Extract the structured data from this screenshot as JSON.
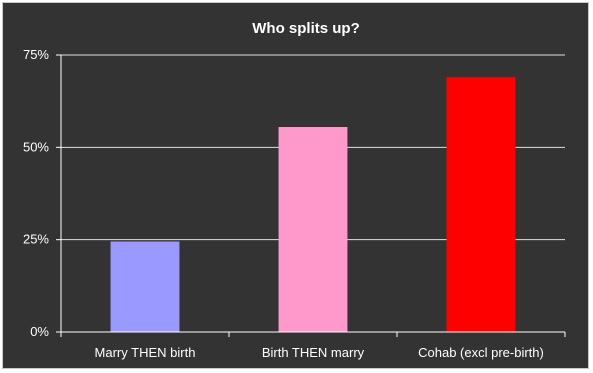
{
  "chart_data": {
    "type": "bar",
    "title": "Who splits up?",
    "categories": [
      "Marry THEN birth",
      "Birth THEN marry",
      "Cohab (excl pre-birth)"
    ],
    "values": [
      24.5,
      55.5,
      69
    ],
    "colors": [
      "#9999ff",
      "#ff99cc",
      "#ff0000"
    ],
    "ylim": [
      0,
      75
    ],
    "yticks": [
      0,
      25,
      50,
      75
    ],
    "ytick_labels": [
      "0%",
      "25%",
      "50%",
      "75%"
    ],
    "grid": true,
    "legend": "none"
  },
  "style": {
    "background": "#333333",
    "text_color": "#ffffff",
    "grid_color": "#ffffff"
  }
}
